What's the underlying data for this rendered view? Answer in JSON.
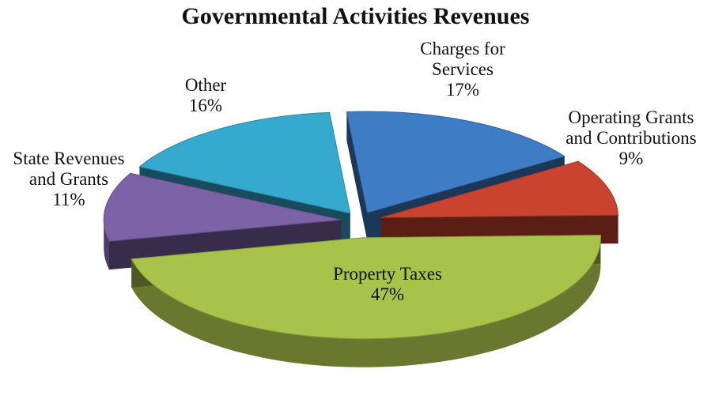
{
  "chart_data": {
    "type": "pie",
    "title": "Governmental Activities Revenues",
    "slices": [
      {
        "label_lines": [
          "Charges for",
          "Services"
        ],
        "percent_text": "17%",
        "value": 17,
        "color": "#3f7cc6"
      },
      {
        "label_lines": [
          "Operating Grants",
          "and Contributions"
        ],
        "percent_text": "9%",
        "value": 9,
        "color": "#c9432f"
      },
      {
        "label_lines": [
          "Property Taxes"
        ],
        "percent_text": "47%",
        "value": 47,
        "color": "#a9c24a"
      },
      {
        "label_lines": [
          "State Revenues",
          "and Grants"
        ],
        "percent_text": "11%",
        "value": 11,
        "color": "#7c62a6"
      },
      {
        "label_lines": [
          "Other"
        ],
        "percent_text": "16%",
        "value": 16,
        "color": "#36a9cf"
      }
    ],
    "style": "3d-exploded"
  }
}
